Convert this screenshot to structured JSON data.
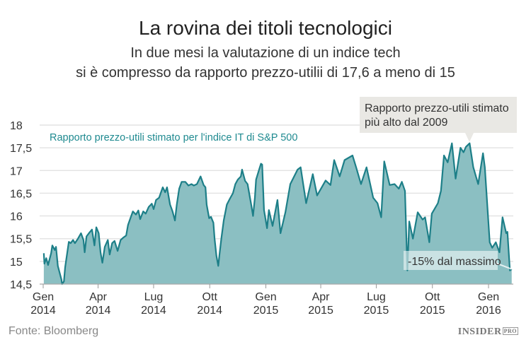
{
  "title": "La rovina dei titoli tecnologici",
  "subtitle_lines": [
    "In due mesi la valutazione di un indice tech",
    "si è compresso da rapporto prezzo-utilii di 17,6 a meno di 15"
  ],
  "source": "Fonte: Bloomberg",
  "logo": {
    "main": "INSIDER",
    "sup": "PRO"
  },
  "colors": {
    "fill": "#8bbfc2",
    "line": "#1d7f88",
    "series_label": "#1f8a90",
    "callout_bg": "#e9e8e4"
  },
  "chart_data": {
    "type": "area",
    "series_label": "Rapporto prezzo-utili stimato per l'indice IT di S&P 500",
    "ylim": [
      14.5,
      18
    ],
    "yticks": [
      18,
      17.5,
      17,
      16.5,
      16,
      15.5,
      15,
      14.5
    ],
    "ytick_labels": [
      "18",
      "17,5",
      "17",
      "16,5",
      "16",
      "15,5",
      "15",
      "14,5"
    ],
    "xticks": [
      {
        "date": "2014-01-01",
        "label": [
          "Gen",
          "2014"
        ]
      },
      {
        "date": "2014-04-01",
        "label": [
          "Apr",
          "2014"
        ]
      },
      {
        "date": "2014-07-01",
        "label": [
          "Lug",
          "2014"
        ]
      },
      {
        "date": "2014-10-01",
        "label": [
          "Ott",
          "2014"
        ]
      },
      {
        "date": "2015-01-01",
        "label": [
          "Gen",
          "2015"
        ]
      },
      {
        "date": "2015-04-01",
        "label": [
          "Apr",
          "2015"
        ]
      },
      {
        "date": "2015-07-01",
        "label": [
          "Lug",
          "2015"
        ]
      },
      {
        "date": "2015-10-01",
        "label": [
          "Ott",
          "2015"
        ]
      },
      {
        "date": "2016-01-01",
        "label": [
          "Gen",
          "2016"
        ]
      }
    ],
    "grid": true,
    "annotations": [
      {
        "text": [
          "Rapporto prezzo-utili stimato",
          "più alto dal 2009"
        ],
        "date": "2015-12-01",
        "value": 17.6
      },
      {
        "text": [
          "-15% dal massimo"
        ],
        "date": "2016-02-08",
        "value": 14.83
      }
    ],
    "points": [
      [
        "2014-01-02",
        15.18
      ],
      [
        "2014-01-03",
        14.95
      ],
      [
        "2014-01-06",
        15.07
      ],
      [
        "2014-01-09",
        14.92
      ],
      [
        "2014-01-14",
        15.18
      ],
      [
        "2014-01-16",
        15.35
      ],
      [
        "2014-01-20",
        15.25
      ],
      [
        "2014-01-22",
        15.32
      ],
      [
        "2014-01-25",
        14.9
      ],
      [
        "2014-01-29",
        14.7
      ],
      [
        "2014-01-31",
        14.6
      ],
      [
        "2014-02-01",
        14.5
      ],
      [
        "2014-02-04",
        14.56
      ],
      [
        "2014-02-06",
        14.87
      ],
      [
        "2014-02-09",
        15.15
      ],
      [
        "2014-02-12",
        15.43
      ],
      [
        "2014-02-15",
        15.4
      ],
      [
        "2014-02-19",
        15.47
      ],
      [
        "2014-02-22",
        15.4
      ],
      [
        "2014-02-27",
        15.5
      ],
      [
        "2014-03-04",
        15.62
      ],
      [
        "2014-03-08",
        15.47
      ],
      [
        "2014-03-10",
        15.2
      ],
      [
        "2014-03-13",
        15.55
      ],
      [
        "2014-03-17",
        15.62
      ],
      [
        "2014-03-22",
        15.7
      ],
      [
        "2014-03-26",
        15.35
      ],
      [
        "2014-03-29",
        15.75
      ],
      [
        "2014-04-02",
        15.62
      ],
      [
        "2014-04-05",
        15.2
      ],
      [
        "2014-04-08",
        14.97
      ],
      [
        "2014-04-12",
        15.32
      ],
      [
        "2014-04-17",
        15.47
      ],
      [
        "2014-04-20",
        15.15
      ],
      [
        "2014-04-24",
        15.4
      ],
      [
        "2014-04-28",
        15.45
      ],
      [
        "2014-05-03",
        15.23
      ],
      [
        "2014-05-08",
        15.47
      ],
      [
        "2014-05-12",
        15.52
      ],
      [
        "2014-05-17",
        15.57
      ],
      [
        "2014-05-20",
        15.8
      ],
      [
        "2014-05-24",
        15.95
      ],
      [
        "2014-05-28",
        16.1
      ],
      [
        "2014-06-02",
        16.03
      ],
      [
        "2014-06-06",
        16.12
      ],
      [
        "2014-06-09",
        15.93
      ],
      [
        "2014-06-14",
        16.1
      ],
      [
        "2014-06-18",
        16.05
      ],
      [
        "2014-06-23",
        16.2
      ],
      [
        "2014-06-28",
        16.27
      ],
      [
        "2014-07-01",
        16.15
      ],
      [
        "2014-07-05",
        16.35
      ],
      [
        "2014-07-10",
        16.4
      ],
      [
        "2014-07-16",
        16.63
      ],
      [
        "2014-07-20",
        16.52
      ],
      [
        "2014-07-23",
        16.63
      ],
      [
        "2014-07-28",
        16.25
      ],
      [
        "2014-08-01",
        16.1
      ],
      [
        "2014-08-05",
        15.9
      ],
      [
        "2014-08-08",
        16.25
      ],
      [
        "2014-08-12",
        16.6
      ],
      [
        "2014-08-16",
        16.75
      ],
      [
        "2014-08-22",
        16.75
      ],
      [
        "2014-08-27",
        16.67
      ],
      [
        "2014-09-01",
        16.7
      ],
      [
        "2014-09-05",
        16.67
      ],
      [
        "2014-09-10",
        16.7
      ],
      [
        "2014-09-16",
        16.87
      ],
      [
        "2014-09-21",
        16.68
      ],
      [
        "2014-09-24",
        16.63
      ],
      [
        "2014-09-26",
        16.25
      ],
      [
        "2014-09-30",
        15.95
      ],
      [
        "2014-10-03",
        15.98
      ],
      [
        "2014-10-07",
        15.85
      ],
      [
        "2014-10-09",
        15.5
      ],
      [
        "2014-10-12",
        15.12
      ],
      [
        "2014-10-15",
        14.9
      ],
      [
        "2014-10-17",
        15.15
      ],
      [
        "2014-10-20",
        15.5
      ],
      [
        "2014-10-24",
        15.9
      ],
      [
        "2014-10-29",
        16.25
      ],
      [
        "2014-11-03",
        16.38
      ],
      [
        "2014-11-08",
        16.5
      ],
      [
        "2014-11-12",
        16.7
      ],
      [
        "2014-11-16",
        16.8
      ],
      [
        "2014-11-21",
        16.87
      ],
      [
        "2014-11-23",
        17.02
      ],
      [
        "2014-11-28",
        16.77
      ],
      [
        "2014-12-02",
        16.7
      ],
      [
        "2014-12-08",
        16.25
      ],
      [
        "2014-12-11",
        16.0
      ],
      [
        "2014-12-14",
        16.4
      ],
      [
        "2014-12-16",
        16.8
      ],
      [
        "2014-12-21",
        17.02
      ],
      [
        "2014-12-24",
        17.15
      ],
      [
        "2014-12-26",
        17.13
      ],
      [
        "2014-12-29",
        16.13
      ],
      [
        "2015-01-03",
        15.73
      ],
      [
        "2015-01-06",
        16.13
      ],
      [
        "2015-01-12",
        15.78
      ],
      [
        "2015-01-20",
        16.35
      ],
      [
        "2015-01-25",
        15.62
      ],
      [
        "2015-02-02",
        16.08
      ],
      [
        "2015-02-10",
        16.7
      ],
      [
        "2015-02-22",
        17.02
      ],
      [
        "2015-02-27",
        17.07
      ],
      [
        "2015-03-08",
        16.28
      ],
      [
        "2015-03-19",
        16.92
      ],
      [
        "2015-03-26",
        16.45
      ],
      [
        "2015-04-09",
        16.78
      ],
      [
        "2015-04-17",
        16.68
      ],
      [
        "2015-04-23",
        17.23
      ],
      [
        "2015-05-02",
        16.87
      ],
      [
        "2015-05-10",
        17.23
      ],
      [
        "2015-05-23",
        17.33
      ],
      [
        "2015-05-29",
        17.07
      ],
      [
        "2015-06-06",
        16.7
      ],
      [
        "2015-06-15",
        17.07
      ],
      [
        "2015-06-26",
        16.4
      ],
      [
        "2015-07-03",
        16.28
      ],
      [
        "2015-07-09",
        15.97
      ],
      [
        "2015-07-14",
        17.2
      ],
      [
        "2015-07-23",
        16.68
      ],
      [
        "2015-07-31",
        16.7
      ],
      [
        "2015-08-07",
        16.6
      ],
      [
        "2015-08-12",
        16.75
      ],
      [
        "2015-08-17",
        16.55
      ],
      [
        "2015-08-21",
        14.8
      ],
      [
        "2015-08-24",
        15.88
      ],
      [
        "2015-08-30",
        15.5
      ],
      [
        "2015-09-07",
        16.08
      ],
      [
        "2015-09-15",
        15.92
      ],
      [
        "2015-09-19",
        15.97
      ],
      [
        "2015-09-26",
        15.42
      ],
      [
        "2015-09-30",
        16.05
      ],
      [
        "2015-10-10",
        16.28
      ],
      [
        "2015-10-15",
        16.55
      ],
      [
        "2015-10-20",
        17.33
      ],
      [
        "2015-10-26",
        17.18
      ],
      [
        "2015-11-02",
        17.6
      ],
      [
        "2015-11-08",
        16.82
      ],
      [
        "2015-11-16",
        17.5
      ],
      [
        "2015-11-21",
        17.4
      ],
      [
        "2015-11-25",
        17.52
      ],
      [
        "2015-12-01",
        17.6
      ],
      [
        "2015-12-07",
        17.07
      ],
      [
        "2015-12-15",
        16.7
      ],
      [
        "2015-12-23",
        17.38
      ],
      [
        "2015-12-26",
        17.07
      ],
      [
        "2016-01-03",
        15.42
      ],
      [
        "2016-01-07",
        15.3
      ],
      [
        "2016-01-13",
        15.42
      ],
      [
        "2016-01-19",
        15.2
      ],
      [
        "2016-01-24",
        15.97
      ],
      [
        "2016-01-30",
        15.62
      ],
      [
        "2016-02-01",
        15.65
      ],
      [
        "2016-02-05",
        14.8
      ],
      [
        "2016-02-08",
        14.83
      ]
    ]
  }
}
